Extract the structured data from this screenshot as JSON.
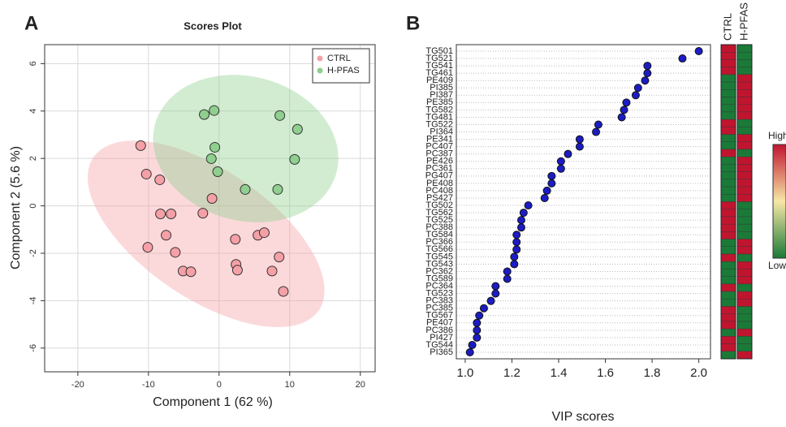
{
  "chart_data": [
    {
      "type": "scatter",
      "panel": "A",
      "title": "Scores Plot",
      "xlabel": "Component 1 (62 %)",
      "ylabel": "Component 2 (5.6 %)",
      "xlim": [
        -24.7,
        22.1
      ],
      "ylim": [
        -7.0,
        6.8
      ],
      "xticks": [
        -20,
        -10,
        0,
        10,
        20
      ],
      "yticks": [
        -6,
        -4,
        -2,
        0,
        2,
        4,
        6
      ],
      "grid": true,
      "legend": "topright",
      "series": [
        {
          "name": "CTRL",
          "color": "#f4a0a6",
          "x": [
            -11.1,
            -10.3,
            -8.4,
            -8.3,
            -6.8,
            -7.5,
            -10.1,
            -6.2,
            -5.1,
            -4.0,
            -2.3,
            -1.0,
            2.3,
            2.4,
            2.6,
            5.5,
            6.4,
            8.5,
            7.5,
            9.1
          ],
          "values": [
            2.54,
            1.34,
            1.1,
            -0.34,
            -0.34,
            -1.24,
            -1.75,
            -1.96,
            -2.75,
            -2.78,
            -0.31,
            0.31,
            -1.41,
            -2.47,
            -2.71,
            -1.24,
            -1.13,
            -2.16,
            -2.75,
            -3.61
          ]
        },
        {
          "name": "H-PFAS",
          "color": "#8fcf8f",
          "x": [
            -0.7,
            -2.1,
            8.6,
            11.1,
            -0.6,
            -1.1,
            -0.2,
            10.7,
            3.7,
            8.3
          ],
          "values": [
            4.02,
            3.85,
            3.81,
            3.23,
            2.47,
            1.99,
            1.44,
            1.96,
            0.69,
            0.69
          ]
        }
      ]
    },
    {
      "type": "dot",
      "panel": "B",
      "xlabel": "VIP scores",
      "color": "#1c1cc4",
      "xlim": [
        0.962,
        2.05
      ],
      "xticks": [
        {
          "value": 1,
          "label": "1.0"
        },
        1.2,
        1.4,
        1.6,
        1.8,
        {
          "value": 2,
          "label": "2.0"
        }
      ],
      "categories": [
        "TG501",
        "TG521",
        "TG541",
        "TG461",
        "PE409",
        "PI385",
        "PI387",
        "PE385",
        "TG582",
        "TG481",
        "TG522",
        "PI364",
        "PE341",
        "PC407",
        "PC387",
        "PE426",
        "PC361",
        "PG407",
        "PE408",
        "PC408",
        "PS427",
        "TG502",
        "TG562",
        "TG525",
        "PC388",
        "TG584",
        "PC366",
        "TG566",
        "TG545",
        "TG543",
        "PC362",
        "TG589",
        "PC364",
        "TG523",
        "PC383",
        "PC385",
        "TG567",
        "PE407",
        "PC386",
        "PI427",
        "TG544",
        "PI365"
      ],
      "values": [
        2.0,
        1.93,
        1.78,
        1.78,
        1.77,
        1.74,
        1.73,
        1.69,
        1.68,
        1.67,
        1.57,
        1.56,
        1.49,
        1.49,
        1.44,
        1.41,
        1.41,
        1.37,
        1.37,
        1.35,
        1.34,
        1.27,
        1.25,
        1.24,
        1.24,
        1.22,
        1.22,
        1.22,
        1.21,
        1.21,
        1.18,
        1.18,
        1.13,
        1.13,
        1.11,
        1.08,
        1.06,
        1.05,
        1.05,
        1.05,
        1.03,
        1.02
      ],
      "heatmap": {
        "columns": [
          "CTRL",
          "H-PFAS"
        ],
        "values": [
          [
            1,
            1,
            1,
            1,
            0,
            0,
            0,
            0,
            0,
            0,
            1,
            1,
            0,
            0,
            1,
            0,
            0,
            0,
            0,
            0,
            0,
            1,
            1,
            1,
            1,
            1,
            0,
            0,
            1,
            0,
            0,
            0,
            1,
            0,
            0,
            1,
            1,
            1,
            0,
            1,
            1,
            0
          ],
          [
            0,
            0,
            0,
            0,
            1,
            1,
            1,
            1,
            1,
            1,
            0,
            0,
            1,
            1,
            0,
            1,
            1,
            1,
            1,
            1,
            1,
            0,
            0,
            0,
            0,
            0,
            1,
            1,
            0,
            1,
            1,
            1,
            0,
            1,
            1,
            0,
            0,
            0,
            1,
            0,
            0,
            1
          ]
        ],
        "colors": [
          "#c0152f",
          "#f7e7a6",
          "#1b7a37"
        ],
        "labels": [
          "High",
          "Low"
        ]
      }
    }
  ]
}
